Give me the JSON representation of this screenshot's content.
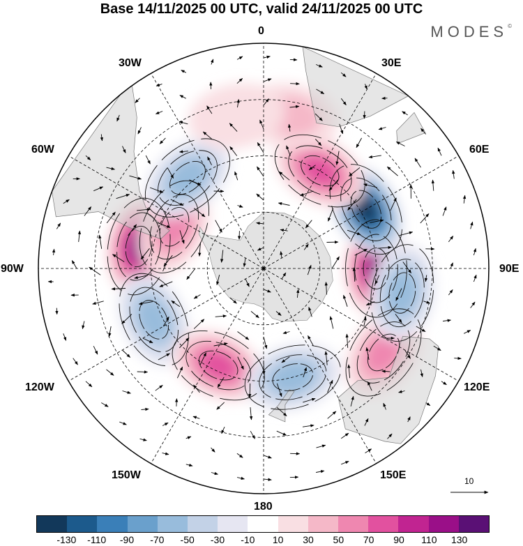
{
  "title": "Base 14/11/2025 00 UTC, valid 24/11/2025 00 UTC",
  "brand": "MODES",
  "brand_mark": "©",
  "longitude_labels": {
    "lon_0": "0",
    "lon_30e": "30E",
    "lon_60e": "60E",
    "lon_90e": "90E",
    "lon_120e": "120E",
    "lon_150e": "150E",
    "lon_180": "180",
    "lon_150w": "150W",
    "lon_120w": "120W",
    "lon_90w": "90W",
    "lon_60w": "60W",
    "lon_30w": "30W"
  },
  "vector_scale_label": "10",
  "colorbar": {
    "colors": [
      "#12385a",
      "#1c5a8c",
      "#3a7fb8",
      "#6aa0cc",
      "#98bcdc",
      "#c3d2e7",
      "#e6e6f2",
      "#ffffff",
      "#f9dfe3",
      "#f5b8c8",
      "#ef87b0",
      "#e2519f",
      "#c12491",
      "#9a0f88",
      "#5a1075"
    ],
    "tick_labels": [
      "-130",
      "-110",
      "-90",
      "-70",
      "-50",
      "-30",
      "-10",
      "10",
      "30",
      "50",
      "70",
      "90",
      "110",
      "130"
    ]
  },
  "anomaly_centers": [
    {
      "lon": 90,
      "lat": -50,
      "value": 120
    },
    {
      "lon": 60,
      "lat": -48,
      "value": -130
    },
    {
      "lon": 30,
      "lat": -50,
      "value": 80
    },
    {
      "lon": -80,
      "lat": -45,
      "value": 120
    },
    {
      "lon": -65,
      "lat": -55,
      "value": 60
    },
    {
      "lon": -40,
      "lat": -48,
      "value": -50
    },
    {
      "lon": -115,
      "lat": -47,
      "value": -60
    },
    {
      "lon": -155,
      "lat": -52,
      "value": 80
    },
    {
      "lon": 165,
      "lat": -50,
      "value": -60
    },
    {
      "lon": 125,
      "lat": -38,
      "value": 50
    },
    {
      "lon": 100,
      "lat": -40,
      "value": -50
    },
    {
      "lon": 10,
      "lat": -35,
      "value": 30
    },
    {
      "lon": -10,
      "lat": -35,
      "value": 20
    }
  ]
}
